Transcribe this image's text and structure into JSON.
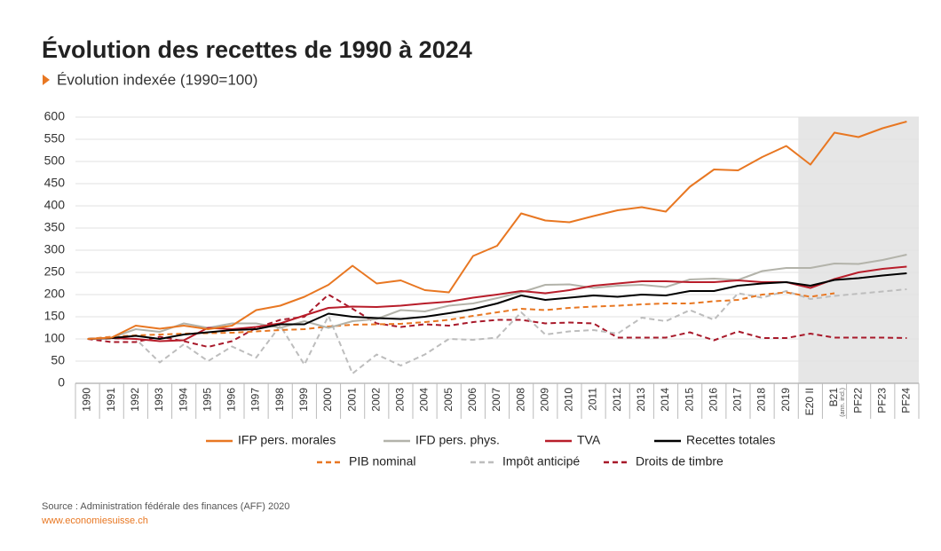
{
  "chart_data": {
    "type": "line",
    "title": "Évolution des recettes de 1990 à 2024",
    "subtitle": "Évolution indexée (1990=100)",
    "source": "Source : Administration fédérale des finances (AFF) 2020",
    "url": "www.economiesuisse.ch",
    "annotations": [
      "(ann. incl.)"
    ],
    "categories": [
      "1990",
      "1991",
      "1992",
      "1993",
      "1994",
      "1995",
      "1996",
      "1997",
      "1998",
      "1999",
      "2000",
      "2001",
      "2002",
      "2003",
      "2004",
      "2005",
      "2006",
      "2007",
      "2008",
      "2009",
      "2010",
      "2011",
      "2012",
      "2013",
      "2014",
      "2015",
      "2016",
      "2017",
      "2018",
      "2019",
      "E20 II",
      "B21",
      "PF22",
      "PF23",
      "PF24"
    ],
    "ylim": [
      0,
      600
    ],
    "yticks": [
      0,
      50,
      100,
      150,
      200,
      250,
      300,
      350,
      400,
      450,
      500,
      550,
      600
    ],
    "grid": true,
    "series": [
      {
        "name": "IFP pers. morales",
        "color": "#e87722",
        "dash": false,
        "values": [
          100,
          103,
          130,
          123,
          130,
          122,
          130,
          165,
          175,
          195,
          222,
          265,
          225,
          232,
          210,
          205,
          287,
          310,
          383,
          367,
          363,
          377,
          390,
          397,
          387,
          443,
          482,
          480,
          510,
          535,
          493,
          565,
          555,
          575,
          590
        ]
      },
      {
        "name": "IFD pers. phys.",
        "color": "#b3b3aa",
        "dash": false,
        "values": [
          100,
          103,
          122,
          116,
          135,
          125,
          135,
          135,
          125,
          140,
          125,
          140,
          145,
          165,
          162,
          175,
          180,
          192,
          205,
          222,
          223,
          215,
          220,
          222,
          217,
          234,
          236,
          233,
          253,
          260,
          260,
          270,
          269,
          278,
          290
        ]
      },
      {
        "name": "TVA",
        "color": "#b81d2a",
        "dash": false,
        "values": [
          100,
          102,
          100,
          95,
          97,
          125,
          122,
          127,
          135,
          153,
          170,
          173,
          172,
          175,
          180,
          184,
          193,
          200,
          208,
          203,
          210,
          220,
          225,
          230,
          230,
          228,
          228,
          232,
          228,
          228,
          215,
          235,
          250,
          258,
          263
        ]
      },
      {
        "name": "Recettes totales",
        "color": "#000000",
        "dash": false,
        "values": [
          100,
          102,
          107,
          100,
          110,
          115,
          120,
          122,
          133,
          133,
          157,
          150,
          147,
          145,
          150,
          158,
          167,
          180,
          198,
          188,
          193,
          198,
          195,
          200,
          198,
          208,
          208,
          220,
          225,
          228,
          220,
          233,
          237,
          243,
          248
        ]
      },
      {
        "name": "PIB nominal",
        "color": "#e87722",
        "dash": true,
        "values": [
          100,
          105,
          108,
          110,
          112,
          113,
          114,
          117,
          120,
          122,
          128,
          132,
          133,
          134,
          138,
          143,
          152,
          160,
          168,
          165,
          170,
          173,
          175,
          178,
          180,
          180,
          185,
          188,
          200,
          205,
          195,
          203,
          null,
          null,
          null
        ]
      },
      {
        "name": "Impôt anticipé",
        "color": "#bdbdbd",
        "dash": true,
        "values": [
          100,
          100,
          100,
          47,
          88,
          50,
          83,
          58,
          130,
          42,
          152,
          22,
          65,
          40,
          65,
          100,
          98,
          103,
          160,
          110,
          117,
          120,
          112,
          148,
          140,
          165,
          143,
          203,
          193,
          208,
          190,
          197,
          202,
          207,
          212
        ]
      },
      {
        "name": "Droits de timbre",
        "color": "#a8192a",
        "dash": true,
        "values": [
          100,
          93,
          93,
          105,
          95,
          82,
          95,
          125,
          143,
          150,
          200,
          168,
          135,
          127,
          133,
          130,
          138,
          143,
          143,
          135,
          137,
          135,
          103,
          103,
          103,
          115,
          97,
          117,
          102,
          102,
          112,
          103,
          103,
          103,
          102
        ]
      }
    ]
  }
}
